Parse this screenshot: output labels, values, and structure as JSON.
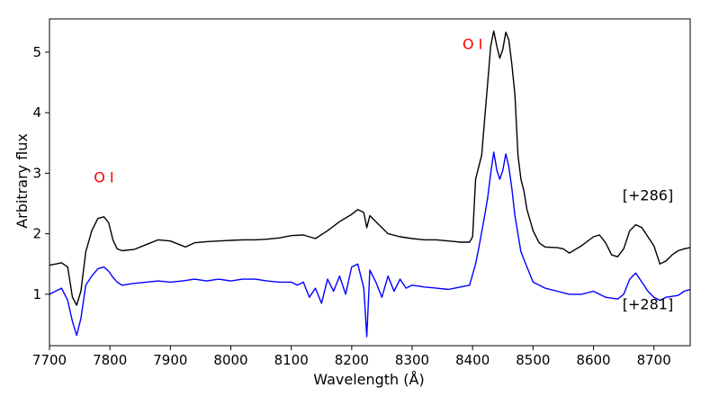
{
  "chart_data": {
    "type": "line",
    "title": "",
    "xlabel": "Wavelength (Å)",
    "ylabel": "Arbitrary flux",
    "xlim": [
      7700,
      8760
    ],
    "ylim": [
      0.15,
      5.55
    ],
    "xticks": [
      7700,
      7800,
      7900,
      8000,
      8100,
      8200,
      8300,
      8400,
      8500,
      8600,
      8700
    ],
    "yticks": [
      1,
      2,
      3,
      4,
      5
    ],
    "grid": false,
    "legend": "none",
    "series": [
      {
        "color": "#000000",
        "points": [
          [
            7700,
            1.48
          ],
          [
            7710,
            1.5
          ],
          [
            7720,
            1.52
          ],
          [
            7730,
            1.45
          ],
          [
            7738,
            0.95
          ],
          [
            7745,
            0.82
          ],
          [
            7752,
            1.05
          ],
          [
            7760,
            1.7
          ],
          [
            7770,
            2.05
          ],
          [
            7780,
            2.25
          ],
          [
            7790,
            2.28
          ],
          [
            7798,
            2.18
          ],
          [
            7805,
            1.9
          ],
          [
            7812,
            1.75
          ],
          [
            7820,
            1.72
          ],
          [
            7840,
            1.74
          ],
          [
            7860,
            1.82
          ],
          [
            7880,
            1.9
          ],
          [
            7900,
            1.88
          ],
          [
            7915,
            1.82
          ],
          [
            7925,
            1.78
          ],
          [
            7940,
            1.85
          ],
          [
            7960,
            1.87
          ],
          [
            7980,
            1.88
          ],
          [
            8000,
            1.89
          ],
          [
            8020,
            1.9
          ],
          [
            8040,
            1.9
          ],
          [
            8060,
            1.91
          ],
          [
            8080,
            1.93
          ],
          [
            8100,
            1.97
          ],
          [
            8120,
            1.98
          ],
          [
            8140,
            1.92
          ],
          [
            8160,
            2.05
          ],
          [
            8180,
            2.2
          ],
          [
            8200,
            2.32
          ],
          [
            8210,
            2.4
          ],
          [
            8220,
            2.35
          ],
          [
            8225,
            2.1
          ],
          [
            8230,
            2.3
          ],
          [
            8240,
            2.2
          ],
          [
            8260,
            2.0
          ],
          [
            8280,
            1.95
          ],
          [
            8300,
            1.92
          ],
          [
            8320,
            1.9
          ],
          [
            8340,
            1.9
          ],
          [
            8360,
            1.88
          ],
          [
            8380,
            1.86
          ],
          [
            8395,
            1.86
          ],
          [
            8400,
            1.95
          ],
          [
            8405,
            2.9
          ],
          [
            8410,
            3.1
          ],
          [
            8415,
            3.3
          ],
          [
            8420,
            3.9
          ],
          [
            8425,
            4.5
          ],
          [
            8430,
            5.1
          ],
          [
            8435,
            5.35
          ],
          [
            8440,
            5.1
          ],
          [
            8445,
            4.9
          ],
          [
            8450,
            5.05
          ],
          [
            8455,
            5.33
          ],
          [
            8460,
            5.2
          ],
          [
            8465,
            4.8
          ],
          [
            8470,
            4.3
          ],
          [
            8475,
            3.3
          ],
          [
            8480,
            2.9
          ],
          [
            8485,
            2.7
          ],
          [
            8490,
            2.4
          ],
          [
            8500,
            2.05
          ],
          [
            8510,
            1.85
          ],
          [
            8520,
            1.78
          ],
          [
            8540,
            1.77
          ],
          [
            8550,
            1.75
          ],
          [
            8560,
            1.68
          ],
          [
            8580,
            1.8
          ],
          [
            8600,
            1.95
          ],
          [
            8610,
            1.98
          ],
          [
            8620,
            1.85
          ],
          [
            8630,
            1.65
          ],
          [
            8640,
            1.62
          ],
          [
            8650,
            1.75
          ],
          [
            8660,
            2.05
          ],
          [
            8670,
            2.15
          ],
          [
            8680,
            2.1
          ],
          [
            8690,
            1.95
          ],
          [
            8700,
            1.8
          ],
          [
            8710,
            1.5
          ],
          [
            8720,
            1.55
          ],
          [
            8730,
            1.65
          ],
          [
            8740,
            1.72
          ],
          [
            8750,
            1.75
          ],
          [
            8760,
            1.77
          ]
        ]
      },
      {
        "color": "#0000ff",
        "points": [
          [
            7700,
            1.0
          ],
          [
            7710,
            1.05
          ],
          [
            7720,
            1.1
          ],
          [
            7730,
            0.9
          ],
          [
            7738,
            0.55
          ],
          [
            7745,
            0.32
          ],
          [
            7752,
            0.6
          ],
          [
            7760,
            1.15
          ],
          [
            7770,
            1.3
          ],
          [
            7780,
            1.42
          ],
          [
            7790,
            1.45
          ],
          [
            7798,
            1.38
          ],
          [
            7805,
            1.28
          ],
          [
            7812,
            1.2
          ],
          [
            7820,
            1.15
          ],
          [
            7840,
            1.18
          ],
          [
            7860,
            1.2
          ],
          [
            7880,
            1.22
          ],
          [
            7900,
            1.2
          ],
          [
            7920,
            1.22
          ],
          [
            7940,
            1.25
          ],
          [
            7960,
            1.22
          ],
          [
            7980,
            1.25
          ],
          [
            8000,
            1.22
          ],
          [
            8020,
            1.25
          ],
          [
            8040,
            1.25
          ],
          [
            8060,
            1.22
          ],
          [
            8080,
            1.2
          ],
          [
            8100,
            1.2
          ],
          [
            8110,
            1.15
          ],
          [
            8120,
            1.2
          ],
          [
            8130,
            0.95
          ],
          [
            8140,
            1.1
          ],
          [
            8150,
            0.85
          ],
          [
            8160,
            1.25
          ],
          [
            8170,
            1.05
          ],
          [
            8180,
            1.3
          ],
          [
            8190,
            1.0
          ],
          [
            8200,
            1.45
          ],
          [
            8210,
            1.5
          ],
          [
            8220,
            1.1
          ],
          [
            8225,
            0.3
          ],
          [
            8230,
            1.4
          ],
          [
            8240,
            1.2
          ],
          [
            8250,
            0.95
          ],
          [
            8260,
            1.3
          ],
          [
            8270,
            1.05
          ],
          [
            8280,
            1.25
          ],
          [
            8290,
            1.1
          ],
          [
            8300,
            1.15
          ],
          [
            8320,
            1.12
          ],
          [
            8340,
            1.1
          ],
          [
            8360,
            1.08
          ],
          [
            8380,
            1.12
          ],
          [
            8395,
            1.15
          ],
          [
            8405,
            1.5
          ],
          [
            8410,
            1.75
          ],
          [
            8420,
            2.3
          ],
          [
            8425,
            2.6
          ],
          [
            8430,
            3.0
          ],
          [
            8435,
            3.35
          ],
          [
            8440,
            3.05
          ],
          [
            8445,
            2.9
          ],
          [
            8450,
            3.05
          ],
          [
            8455,
            3.32
          ],
          [
            8460,
            3.1
          ],
          [
            8465,
            2.75
          ],
          [
            8470,
            2.3
          ],
          [
            8480,
            1.7
          ],
          [
            8490,
            1.45
          ],
          [
            8500,
            1.2
          ],
          [
            8520,
            1.1
          ],
          [
            8540,
            1.05
          ],
          [
            8560,
            1.0
          ],
          [
            8580,
            1.0
          ],
          [
            8600,
            1.05
          ],
          [
            8620,
            0.95
          ],
          [
            8640,
            0.92
          ],
          [
            8650,
            1.0
          ],
          [
            8660,
            1.25
          ],
          [
            8670,
            1.35
          ],
          [
            8680,
            1.2
          ],
          [
            8690,
            1.05
          ],
          [
            8700,
            0.95
          ],
          [
            8710,
            0.9
          ],
          [
            8720,
            0.95
          ],
          [
            8740,
            0.98
          ],
          [
            8750,
            1.05
          ],
          [
            8760,
            1.08
          ]
        ]
      }
    ],
    "annotations": [
      {
        "text": "O I",
        "x": 7790,
        "y": 2.85,
        "color": "#ff0000"
      },
      {
        "text": "O I",
        "x": 8400,
        "y": 5.05,
        "color": "#ff0000"
      },
      {
        "text": "[+286]",
        "x": 8690,
        "y": 2.55,
        "color": "#000000"
      },
      {
        "text": "[+281]",
        "x": 8690,
        "y": 0.75,
        "color": "#000000"
      }
    ]
  }
}
